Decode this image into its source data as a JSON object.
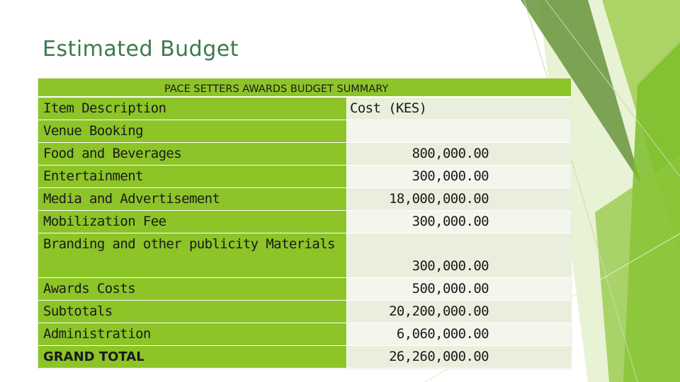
{
  "slide": {
    "title": "Estimated Budget"
  },
  "budget_table": {
    "caption": "PACE SETTERS AWARDS BUDGET SUMMARY",
    "columns": [
      "Item Description",
      "Cost (KES)"
    ],
    "rows": [
      {
        "item": "Venue Booking",
        "cost": ""
      },
      {
        "item": "Food and Beverages",
        "cost": "800,000.00"
      },
      {
        "item": "Entertainment",
        "cost": "300,000.00"
      },
      {
        "item": "Media and Advertisement",
        "cost": "18,000,000.00"
      },
      {
        "item": "Mobilization Fee",
        "cost": "300,000.00"
      },
      {
        "item": "Branding and other publicity Materials",
        "cost": "300,000.00"
      },
      {
        "item": "Awards Costs",
        "cost": "500,000.00"
      },
      {
        "item": "Subtotals",
        "cost": "20,200,000.00"
      },
      {
        "item": "Administration",
        "cost": "6,060,000.00"
      },
      {
        "item": "GRAND TOTAL",
        "cost": "26,260,000.00"
      }
    ]
  },
  "colors": {
    "accent_green": "#8dc428",
    "dark_green": "#6a9a3a",
    "title_green": "#3c7a4f",
    "cell_light": "#eaefdd"
  }
}
